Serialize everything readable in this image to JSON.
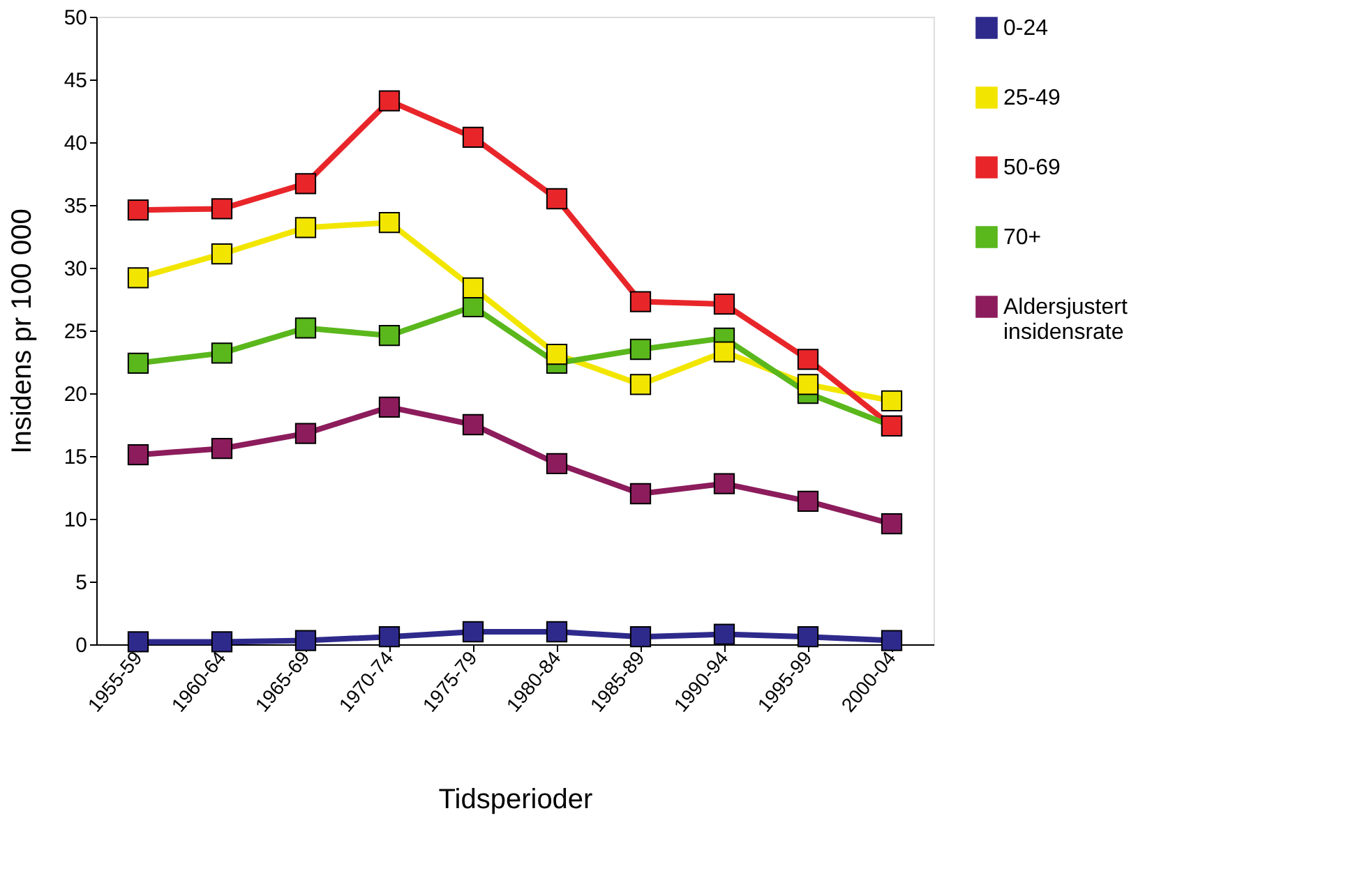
{
  "chart_data": {
    "type": "line",
    "xlabel": "Tidsperioder",
    "ylabel": "Insidens pr 100 000",
    "categories": [
      "1955-59",
      "1960-64",
      "1965-69",
      "1970-74",
      "1975-79",
      "1980-84",
      "1985-89",
      "1990-94",
      "1995-99",
      "2000-04"
    ],
    "series": [
      {
        "name": "0-24",
        "color": "#2e2a8c",
        "values": [
          0.2,
          0.2,
          0.3,
          0.6,
          1.0,
          1.0,
          0.6,
          0.8,
          0.6,
          0.3
        ]
      },
      {
        "name": "25-49",
        "color": "#f2e600",
        "values": [
          29.2,
          31.1,
          33.2,
          33.6,
          28.4,
          23.1,
          20.7,
          23.3,
          20.7,
          19.4
        ]
      },
      {
        "name": "50-69",
        "color": "#e8262a",
        "values": [
          34.6,
          34.7,
          36.7,
          43.3,
          40.4,
          35.5,
          27.3,
          27.1,
          22.7,
          17.4
        ]
      },
      {
        "name": "70+",
        "color": "#5ab71c",
        "values": [
          22.4,
          23.2,
          25.2,
          24.6,
          26.9,
          22.4,
          23.5,
          24.4,
          20.0,
          17.4
        ]
      },
      {
        "name": "Aldersjustert insidensrate",
        "color": "#8c1c5c",
        "values": [
          15.1,
          15.6,
          16.8,
          18.9,
          17.5,
          14.4,
          12.0,
          12.8,
          11.4,
          9.6
        ]
      }
    ],
    "ylim": [
      0,
      50
    ],
    "yticks": [
      0,
      5,
      10,
      15,
      20,
      25,
      30,
      35,
      40,
      45,
      50
    ],
    "grid": false,
    "legend": "top right",
    "marker": "square",
    "line_style": "solid"
  }
}
